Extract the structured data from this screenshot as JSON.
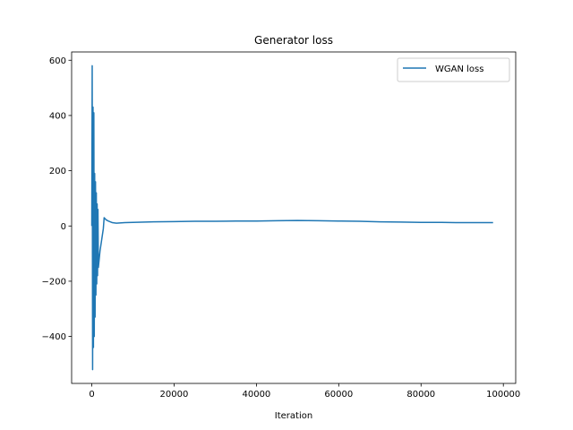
{
  "chart_data": {
    "type": "line",
    "title": "Generator loss",
    "xlabel": "Iteration",
    "ylabel": "",
    "xlim": [
      -4900,
      103000
    ],
    "ylim": [
      -570,
      630
    ],
    "x_ticks": [
      0,
      20000,
      40000,
      60000,
      80000,
      100000
    ],
    "x_tick_labels": [
      "0",
      "20000",
      "40000",
      "60000",
      "80000",
      "100000"
    ],
    "y_ticks": [
      -400,
      -200,
      0,
      200,
      400,
      600
    ],
    "y_tick_labels": [
      "−400",
      "−200",
      "0",
      "200",
      "400",
      "600"
    ],
    "grid": false,
    "legend_position": "upper right",
    "series": [
      {
        "name": "WGAN loss",
        "color": "#1f77b4",
        "x": [
          0,
          100,
          200,
          300,
          400,
          500,
          600,
          700,
          800,
          900,
          1000,
          1100,
          1200,
          1300,
          1400,
          1500,
          1600,
          1800,
          2000,
          2200,
          2500,
          2800,
          3000,
          3500,
          4000,
          5000,
          6000,
          8000,
          10000,
          15000,
          20000,
          25000,
          30000,
          35000,
          40000,
          45000,
          50000,
          55000,
          60000,
          65000,
          70000,
          75000,
          80000,
          85000,
          90000,
          95000,
          97500
        ],
        "y": [
          0,
          580,
          -520,
          430,
          -440,
          410,
          -400,
          190,
          -330,
          160,
          -250,
          120,
          -210,
          80,
          -180,
          60,
          -150,
          -120,
          -90,
          -70,
          -40,
          -10,
          30,
          22,
          18,
          12,
          10,
          12,
          13,
          15,
          16,
          17,
          17,
          18,
          18,
          19,
          20,
          19,
          18,
          17,
          15,
          14,
          13,
          13,
          12,
          12,
          12
        ]
      }
    ]
  }
}
